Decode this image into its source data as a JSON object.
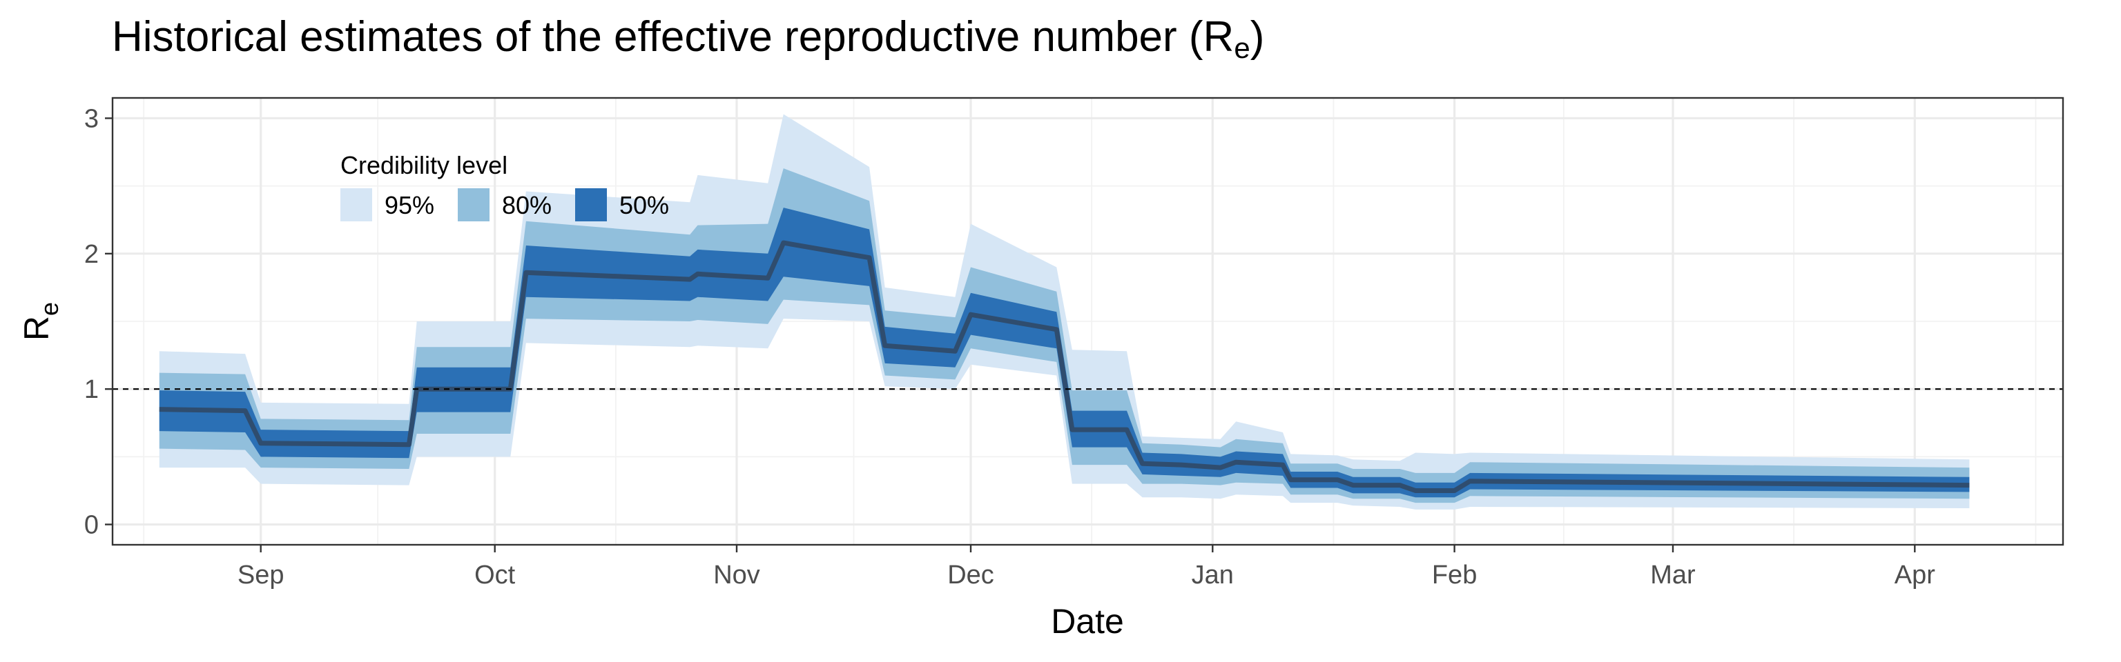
{
  "chart_data": {
    "type": "area",
    "title": "Historical estimates of the effective reproductive number (R",
    "title_subscript": "e",
    "title_suffix": ")",
    "xlabel": "Date",
    "ylabel": "R",
    "ylabel_subscript": "e",
    "x_range": [
      "2020-08-13",
      "2021-04-20"
    ],
    "ylim": [
      -0.15,
      3.15
    ],
    "y_ticks": [
      0,
      1,
      2,
      3
    ],
    "x_ticks": [
      {
        "date": "2020-09-01",
        "label": "Sep"
      },
      {
        "date": "2020-10-01",
        "label": "Oct"
      },
      {
        "date": "2020-11-01",
        "label": "Nov"
      },
      {
        "date": "2020-12-01",
        "label": "Dec"
      },
      {
        "date": "2021-01-01",
        "label": "Jan"
      },
      {
        "date": "2021-02-01",
        "label": "Feb"
      },
      {
        "date": "2021-03-01",
        "label": "Mar"
      },
      {
        "date": "2021-04-01",
        "label": "Apr"
      }
    ],
    "reference_line": {
      "y": 1,
      "style": "dashed"
    },
    "grid": true,
    "legend": {
      "title": "Credibility level",
      "placement": "top-left",
      "items": [
        {
          "label": "95%",
          "color": "#d6e6f5"
        },
        {
          "label": "80%",
          "color": "#91bfdc"
        },
        {
          "label": "50%",
          "color": "#2b70b5"
        }
      ]
    },
    "colors": {
      "median_line": "#2f4d6f",
      "band95": "#d6e6f5",
      "band80": "#91bfdc",
      "band50": "#2b70b5"
    },
    "series": [
      {
        "date": "2020-08-19",
        "median": 0.85,
        "lo50": 0.69,
        "hi50": 0.99,
        "lo80": 0.56,
        "hi80": 1.12,
        "lo95": 0.42,
        "hi95": 1.28
      },
      {
        "date": "2020-08-30",
        "median": 0.84,
        "lo50": 0.68,
        "hi50": 0.98,
        "lo80": 0.55,
        "hi80": 1.11,
        "lo95": 0.42,
        "hi95": 1.26
      },
      {
        "date": "2020-09-01",
        "median": 0.6,
        "lo50": 0.5,
        "hi50": 0.7,
        "lo80": 0.42,
        "hi80": 0.78,
        "lo95": 0.3,
        "hi95": 0.9
      },
      {
        "date": "2020-09-20",
        "median": 0.59,
        "lo50": 0.49,
        "hi50": 0.69,
        "lo80": 0.41,
        "hi80": 0.77,
        "lo95": 0.29,
        "hi95": 0.89
      },
      {
        "date": "2020-09-21",
        "median": 1.0,
        "lo50": 0.83,
        "hi50": 1.16,
        "lo80": 0.67,
        "hi80": 1.31,
        "lo95": 0.5,
        "hi95": 1.5
      },
      {
        "date": "2020-10-03",
        "median": 1.0,
        "lo50": 0.83,
        "hi50": 1.16,
        "lo80": 0.67,
        "hi80": 1.31,
        "lo95": 0.5,
        "hi95": 1.5
      },
      {
        "date": "2020-10-05",
        "median": 1.86,
        "lo50": 1.68,
        "hi50": 2.06,
        "lo80": 1.52,
        "hi80": 2.24,
        "lo95": 1.34,
        "hi95": 2.46
      },
      {
        "date": "2020-10-26",
        "median": 1.81,
        "lo50": 1.65,
        "hi50": 1.98,
        "lo80": 1.5,
        "hi80": 2.14,
        "lo95": 1.31,
        "hi95": 2.38
      },
      {
        "date": "2020-10-27",
        "median": 1.85,
        "lo50": 1.68,
        "hi50": 2.03,
        "lo80": 1.51,
        "hi80": 2.21,
        "lo95": 1.32,
        "hi95": 2.58
      },
      {
        "date": "2020-11-05",
        "median": 1.82,
        "lo50": 1.65,
        "hi50": 2.0,
        "lo80": 1.48,
        "hi80": 2.22,
        "lo95": 1.3,
        "hi95": 2.52
      },
      {
        "date": "2020-11-07",
        "median": 2.08,
        "lo50": 1.83,
        "hi50": 2.34,
        "lo80": 1.66,
        "hi80": 2.63,
        "lo95": 1.52,
        "hi95": 3.03
      },
      {
        "date": "2020-11-18",
        "median": 1.97,
        "lo50": 1.76,
        "hi50": 2.18,
        "lo80": 1.62,
        "hi80": 2.39,
        "lo95": 1.5,
        "hi95": 2.64
      },
      {
        "date": "2020-11-20",
        "median": 1.32,
        "lo50": 1.19,
        "hi50": 1.46,
        "lo80": 1.1,
        "hi80": 1.58,
        "lo95": 1.02,
        "hi95": 1.75
      },
      {
        "date": "2020-11-29",
        "median": 1.28,
        "lo50": 1.16,
        "hi50": 1.41,
        "lo80": 1.07,
        "hi80": 1.53,
        "lo95": 1.0,
        "hi95": 1.68
      },
      {
        "date": "2020-12-01",
        "median": 1.55,
        "lo50": 1.4,
        "hi50": 1.71,
        "lo80": 1.3,
        "hi80": 1.9,
        "lo95": 1.18,
        "hi95": 2.22
      },
      {
        "date": "2020-12-12",
        "median": 1.44,
        "lo50": 1.3,
        "hi50": 1.57,
        "lo80": 1.2,
        "hi80": 1.72,
        "lo95": 1.1,
        "hi95": 1.9
      },
      {
        "date": "2020-12-14",
        "median": 0.7,
        "lo50": 0.57,
        "hi50": 0.84,
        "lo80": 0.44,
        "hi80": 0.99,
        "lo95": 0.3,
        "hi95": 1.29
      },
      {
        "date": "2020-12-21",
        "median": 0.7,
        "lo50": 0.57,
        "hi50": 0.84,
        "lo80": 0.44,
        "hi80": 0.99,
        "lo95": 0.3,
        "hi95": 1.28
      },
      {
        "date": "2020-12-23",
        "median": 0.45,
        "lo50": 0.37,
        "hi50": 0.53,
        "lo80": 0.3,
        "hi80": 0.6,
        "lo95": 0.2,
        "hi95": 0.65
      },
      {
        "date": "2020-12-28",
        "median": 0.44,
        "lo50": 0.36,
        "hi50": 0.52,
        "lo80": 0.3,
        "hi80": 0.59,
        "lo95": 0.2,
        "hi95": 0.64
      },
      {
        "date": "2021-01-02",
        "median": 0.42,
        "lo50": 0.35,
        "hi50": 0.5,
        "lo80": 0.29,
        "hi80": 0.57,
        "lo95": 0.19,
        "hi95": 0.63
      },
      {
        "date": "2021-01-04",
        "median": 0.46,
        "lo50": 0.38,
        "hi50": 0.54,
        "lo80": 0.31,
        "hi80": 0.63,
        "lo95": 0.22,
        "hi95": 0.76
      },
      {
        "date": "2021-01-10",
        "median": 0.44,
        "lo50": 0.36,
        "hi50": 0.52,
        "lo80": 0.3,
        "hi80": 0.6,
        "lo95": 0.21,
        "hi95": 0.68
      },
      {
        "date": "2021-01-11",
        "median": 0.33,
        "lo50": 0.27,
        "hi50": 0.39,
        "lo80": 0.22,
        "hi80": 0.45,
        "lo95": 0.16,
        "hi95": 0.52
      },
      {
        "date": "2021-01-17",
        "median": 0.33,
        "lo50": 0.27,
        "hi50": 0.39,
        "lo80": 0.22,
        "hi80": 0.45,
        "lo95": 0.16,
        "hi95": 0.51
      },
      {
        "date": "2021-01-19",
        "median": 0.29,
        "lo50": 0.23,
        "hi50": 0.35,
        "lo80": 0.19,
        "hi80": 0.41,
        "lo95": 0.14,
        "hi95": 0.48
      },
      {
        "date": "2021-01-25",
        "median": 0.29,
        "lo50": 0.23,
        "hi50": 0.35,
        "lo80": 0.19,
        "hi80": 0.41,
        "lo95": 0.13,
        "hi95": 0.47
      },
      {
        "date": "2021-01-27",
        "median": 0.25,
        "lo50": 0.2,
        "hi50": 0.31,
        "lo80": 0.16,
        "hi80": 0.38,
        "lo95": 0.11,
        "hi95": 0.53
      },
      {
        "date": "2021-02-01",
        "median": 0.25,
        "lo50": 0.2,
        "hi50": 0.31,
        "lo80": 0.16,
        "hi80": 0.38,
        "lo95": 0.11,
        "hi95": 0.52
      },
      {
        "date": "2021-02-03",
        "median": 0.32,
        "lo50": 0.26,
        "hi50": 0.38,
        "lo80": 0.21,
        "hi80": 0.46,
        "lo95": 0.13,
        "hi95": 0.53
      },
      {
        "date": "2021-04-08",
        "median": 0.29,
        "lo50": 0.24,
        "hi50": 0.35,
        "lo80": 0.19,
        "hi80": 0.42,
        "lo95": 0.12,
        "hi95": 0.48
      }
    ]
  }
}
